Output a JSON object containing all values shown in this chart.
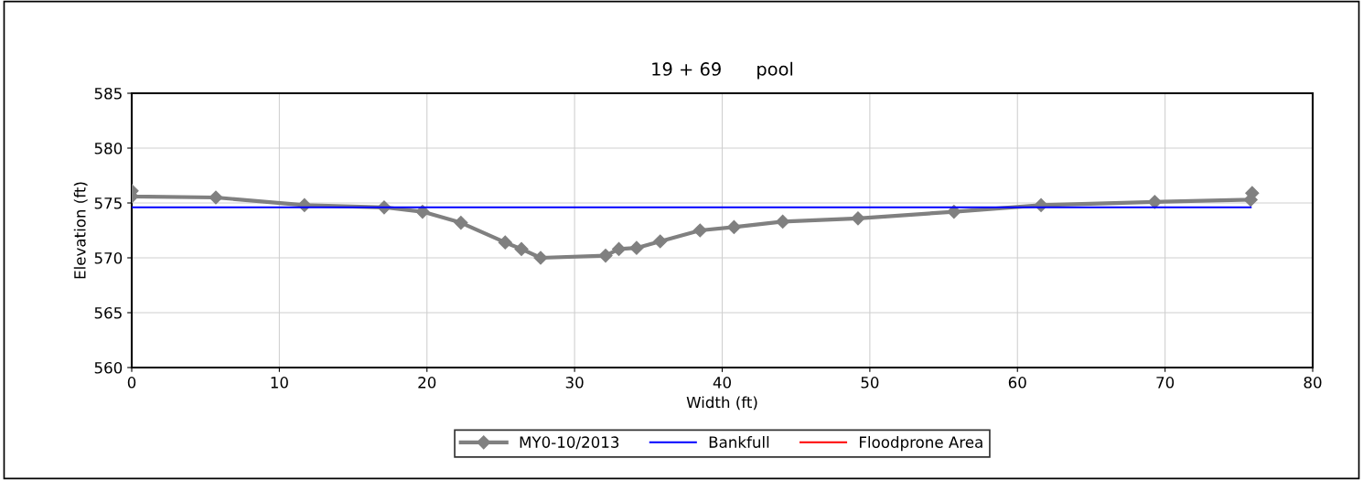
{
  "chart_data": {
    "type": "line",
    "title": "19 + 69      pool",
    "xlabel": "Width (ft)",
    "ylabel": "Elevation (ft)",
    "xlim": [
      0,
      80
    ],
    "xticks": [
      0,
      10,
      20,
      30,
      40,
      50,
      60,
      70,
      80
    ],
    "ylim": [
      560,
      585
    ],
    "yticks": [
      560,
      565,
      570,
      575,
      580,
      585
    ],
    "grid": true,
    "legend": "bottom",
    "series": [
      {
        "name": "MY0-10/2013",
        "color": "#808080",
        "marker": "diamond",
        "x": [
          0,
          0,
          5.7,
          11.7,
          17.1,
          19.7,
          22.3,
          25.3,
          26.4,
          27.7,
          32.1,
          33.0,
          34.2,
          35.8,
          38.5,
          40.8,
          44.1,
          49.2,
          55.7,
          61.6,
          69.3,
          75.8,
          75.9
        ],
        "values": [
          576.1,
          575.6,
          575.5,
          574.8,
          574.6,
          574.2,
          573.2,
          571.4,
          570.8,
          570.0,
          570.2,
          570.8,
          570.9,
          571.5,
          572.5,
          572.8,
          573.3,
          573.6,
          574.2,
          574.8,
          575.1,
          575.3,
          575.9
        ]
      },
      {
        "name": "Bankfull",
        "color": "#0000ff",
        "marker": "none",
        "x": [
          0,
          75.8
        ],
        "values": [
          574.6,
          574.6
        ]
      },
      {
        "name": "Floodprone Area",
        "color": "#ff0000",
        "marker": "none"
      }
    ]
  }
}
